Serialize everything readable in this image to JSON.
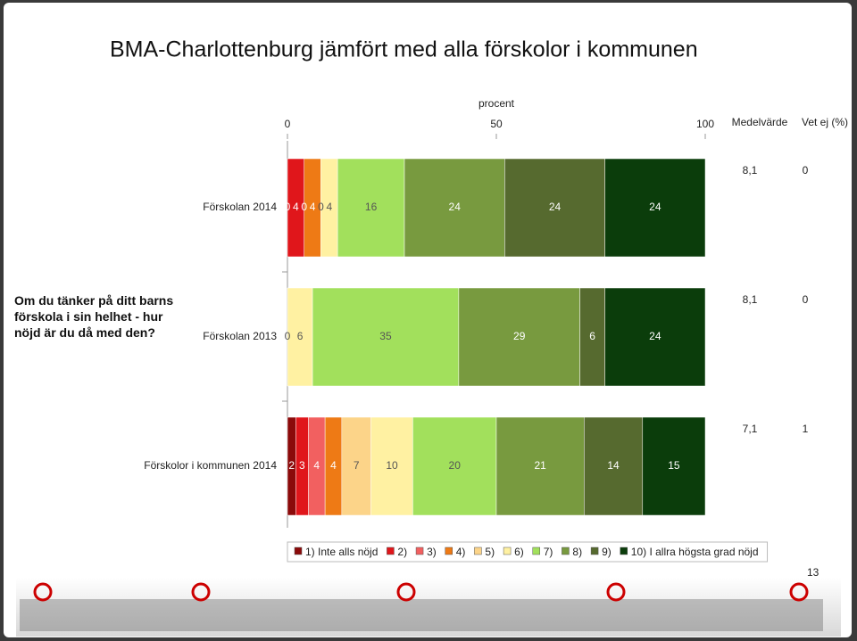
{
  "chart_data": {
    "type": "bar",
    "orientation": "horizontal",
    "stacked": true,
    "title": "BMA-Charlottenburg jämfört med alla förskolor i kommunen",
    "question": "Om du tänker på ditt barns förskola i sin helhet - hur nöjd är du då med den?",
    "xlabel": "procent",
    "xlim": [
      0,
      100
    ],
    "xticks": [
      0,
      50,
      100
    ],
    "categories": [
      "Förskolan 2014",
      "Förskolan 2013",
      "Förskolor i kommunen 2014"
    ],
    "series": [
      {
        "name": "1) Inte alls nöjd",
        "color": "#8b0a0a",
        "values": [
          0,
          null,
          2
        ]
      },
      {
        "name": "2)",
        "color": "#e0161b",
        "values": [
          4,
          null,
          3
        ]
      },
      {
        "name": "3)",
        "color": "#f26060",
        "values": [
          0,
          null,
          4
        ]
      },
      {
        "name": "4)",
        "color": "#ee7a15",
        "values": [
          4,
          null,
          4
        ]
      },
      {
        "name": "5)",
        "color": "#fcd489",
        "values": [
          0,
          0,
          7
        ]
      },
      {
        "name": "6)",
        "color": "#fff1a2",
        "values": [
          4,
          6,
          10
        ]
      },
      {
        "name": "7)",
        "color": "#a2e05c",
        "values": [
          16,
          35,
          20
        ]
      },
      {
        "name": "8)",
        "color": "#789a3f",
        "values": [
          24,
          29,
          21
        ]
      },
      {
        "name": "9)",
        "color": "#566a2f",
        "values": [
          24,
          6,
          14
        ]
      },
      {
        "name": "10) I allra högsta grad nöjd",
        "color": "#0b3d0b",
        "values": [
          24,
          24,
          15
        ]
      }
    ],
    "mean_header": "Medelvärde",
    "mean": [
      {
        "value": 8.1,
        "label": "8,1"
      },
      {
        "value": 8.1,
        "label": "8,1"
      },
      {
        "value": 7.1,
        "label": "7,1"
      }
    ],
    "dont_know_header": "Vet ej (%)",
    "dont_know": [
      0,
      0,
      1
    ]
  },
  "page_number": "13"
}
